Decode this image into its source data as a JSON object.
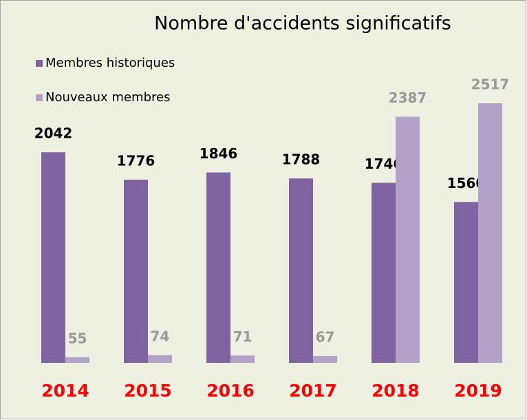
{
  "chart_data": {
    "type": "bar",
    "title": "Nombre d'accidents significatifs",
    "categories": [
      "2014",
      "2015",
      "2016",
      "2017",
      "2018",
      "2019"
    ],
    "series": [
      {
        "name": "Membres historiques",
        "color": "#8064a2",
        "values": [
          2042,
          1776,
          1846,
          1788,
          1746,
          1560
        ]
      },
      {
        "name": "Nouveaux membres",
        "color": "#b3a2c7",
        "values": [
          55,
          74,
          71,
          67,
          2387,
          2517
        ]
      }
    ],
    "legend": "top-left"
  }
}
